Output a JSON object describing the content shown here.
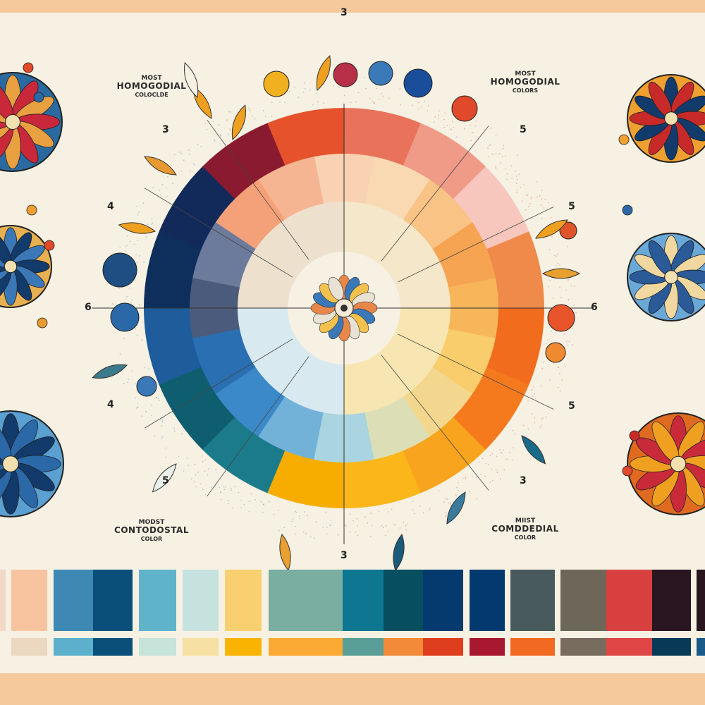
{
  "labels": {
    "top_left": {
      "line1": "MOST",
      "line2": "HOMOGODIAL",
      "line3": "COLOCLDE"
    },
    "top_right": {
      "line1": "MOST",
      "line2": "HOMOGODIAL",
      "line3": "COLORS"
    },
    "bottom_left": {
      "line1": "MODST",
      "line2": "CONTODOSTAL",
      "line3": "COLOR"
    },
    "bottom_right": {
      "line1": "MIIST",
      "line2": "COMDDEDIAL",
      "line3": "COLOR"
    }
  },
  "numbers": {
    "top": "3",
    "bottom": "3",
    "left": [
      "3",
      "4",
      "6",
      "4",
      "5"
    ],
    "right": [
      "5",
      "5",
      "6",
      "5",
      "3"
    ]
  },
  "wheel": {
    "outer_ring": [
      "#e9735a",
      "#f09a88",
      "#f7c6bc",
      "#ef8a4a",
      "#f26c1e",
      "#f57a1e",
      "#f8a41e",
      "#fbb61a",
      "#f7ad00",
      "#1c7b8a",
      "#0f5e70",
      "#1e5c9c",
      "#0e2e5c",
      "#122a5a",
      "#8a1a30",
      "#e5522c"
    ],
    "middle_ring": [
      "#f8d2b2",
      "#f9d9b2",
      "#f8c384",
      "#f6a352",
      "#f8b65a",
      "#f9cc6c",
      "#f4d78e",
      "#dcdfb6",
      "#a9d4e0",
      "#72b2d9",
      "#3b89c8",
      "#2a6fb1",
      "#4b5b7b",
      "#6c7b9b",
      "#f4a078",
      "#f6b592"
    ],
    "inner_quadrants": [
      "#f5e7c9",
      "#f7e6b2",
      "#d9e9f0",
      "#ede1cd"
    ],
    "center_flower": [
      "#e8874a",
      "#3a78b8",
      "#f3c14e",
      "#e9e2d4"
    ]
  },
  "swatches": {
    "top_row": [
      "#f2d8c6",
      "#f8c4a0",
      "#3e88b4",
      "#0a4e7a",
      "#5fb4cc",
      "#c6e2de",
      "#f8d070",
      "#7aaea0",
      "#0e7690",
      "#064e60",
      "#043a6e",
      "#023a70",
      "#485a5c",
      "#6e6658",
      "#d84040",
      "#2a1620",
      "#2a1620"
    ],
    "bottom_row": [
      "#ecd8c0",
      "#5cb0cc",
      "#0a4e7a",
      "#c6e4da",
      "#f6e0a4",
      "#fab400",
      "#fbab34",
      "#5a9e98",
      "#f28a3a",
      "#de3e1e",
      "#a81830",
      "#f26a22",
      "#786c5e",
      "#e04646",
      "#083a58",
      "#1a5a8a"
    ]
  },
  "side_panels": {
    "left": [
      [
        "#c8283a",
        "#2a6aa0",
        "#e8a040"
      ],
      [
        "#123a6a",
        "#e8b050",
        "#3a78b8"
      ],
      [
        "#2a68a8",
        "#5aa0d0",
        "#123a6a"
      ]
    ],
    "right": [
      [
        "#c82a2a",
        "#f0a030",
        "#123a6a"
      ],
      [
        "#2a5a98",
        "#6aa8d8",
        "#f0d8a0"
      ],
      [
        "#f0a020",
        "#e06a20",
        "#c82a3a"
      ]
    ]
  }
}
